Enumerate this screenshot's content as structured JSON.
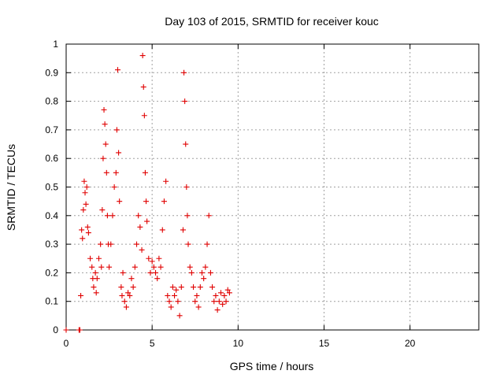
{
  "chart_data": {
    "type": "scatter",
    "title": "Day 103 of 2015, SRMTID for receiver kouc",
    "xlabel": "GPS time / hours",
    "ylabel": "SRMTID / TECUs",
    "xlim": [
      0,
      24
    ],
    "ylim": [
      0,
      1
    ],
    "xticks": [
      0,
      5,
      10,
      15,
      20
    ],
    "xtick_labels": [
      "0",
      "5",
      "10",
      "15",
      "20"
    ],
    "yticks": [
      0,
      0.1,
      0.2,
      0.3,
      0.4,
      0.5,
      0.6,
      0.7,
      0.8,
      0.9,
      1
    ],
    "ytick_labels": [
      "0",
      "0.1",
      "0.2",
      "0.3",
      "0.4",
      "0.5",
      "0.6",
      "0.7",
      "0.8",
      "0.9",
      "1"
    ],
    "grid": true,
    "marker": "+",
    "marker_color": "#e00000",
    "series": [
      {
        "name": "SRMTID",
        "points": [
          [
            0.0,
            0.0
          ],
          [
            0.75,
            0.0
          ],
          [
            0.8,
            0.0
          ],
          [
            0.85,
            0.12
          ],
          [
            0.9,
            0.35
          ],
          [
            0.95,
            0.32
          ],
          [
            1.0,
            0.42
          ],
          [
            1.05,
            0.52
          ],
          [
            1.1,
            0.48
          ],
          [
            1.15,
            0.44
          ],
          [
            1.2,
            0.5
          ],
          [
            1.25,
            0.36
          ],
          [
            1.3,
            0.34
          ],
          [
            1.4,
            0.25
          ],
          [
            1.5,
            0.22
          ],
          [
            1.55,
            0.18
          ],
          [
            1.6,
            0.15
          ],
          [
            1.7,
            0.2
          ],
          [
            1.75,
            0.13
          ],
          [
            1.8,
            0.18
          ],
          [
            1.9,
            0.25
          ],
          [
            2.0,
            0.3
          ],
          [
            2.05,
            0.22
          ],
          [
            2.1,
            0.42
          ],
          [
            2.15,
            0.6
          ],
          [
            2.2,
            0.77
          ],
          [
            2.25,
            0.72
          ],
          [
            2.3,
            0.65
          ],
          [
            2.35,
            0.55
          ],
          [
            2.4,
            0.4
          ],
          [
            2.45,
            0.3
          ],
          [
            2.5,
            0.22
          ],
          [
            2.6,
            0.3
          ],
          [
            2.7,
            0.4
          ],
          [
            2.8,
            0.5
          ],
          [
            2.9,
            0.55
          ],
          [
            2.95,
            0.7
          ],
          [
            3.0,
            0.91
          ],
          [
            3.05,
            0.62
          ],
          [
            3.1,
            0.45
          ],
          [
            3.2,
            0.15
          ],
          [
            3.25,
            0.12
          ],
          [
            3.3,
            0.2
          ],
          [
            3.4,
            0.1
          ],
          [
            3.5,
            0.08
          ],
          [
            3.6,
            0.13
          ],
          [
            3.7,
            0.12
          ],
          [
            3.8,
            0.18
          ],
          [
            3.9,
            0.15
          ],
          [
            4.0,
            0.22
          ],
          [
            4.1,
            0.3
          ],
          [
            4.2,
            0.4
          ],
          [
            4.3,
            0.36
          ],
          [
            4.4,
            0.28
          ],
          [
            4.45,
            0.96
          ],
          [
            4.5,
            0.85
          ],
          [
            4.55,
            0.75
          ],
          [
            4.6,
            0.55
          ],
          [
            4.65,
            0.45
          ],
          [
            4.7,
            0.38
          ],
          [
            4.8,
            0.25
          ],
          [
            4.9,
            0.2
          ],
          [
            5.0,
            0.24
          ],
          [
            5.1,
            0.22
          ],
          [
            5.2,
            0.2
          ],
          [
            5.3,
            0.18
          ],
          [
            5.4,
            0.25
          ],
          [
            5.5,
            0.22
          ],
          [
            5.6,
            0.35
          ],
          [
            5.7,
            0.45
          ],
          [
            5.8,
            0.52
          ],
          [
            5.9,
            0.12
          ],
          [
            6.0,
            0.1
          ],
          [
            6.1,
            0.08
          ],
          [
            6.2,
            0.15
          ],
          [
            6.3,
            0.12
          ],
          [
            6.4,
            0.14
          ],
          [
            6.5,
            0.1
          ],
          [
            6.6,
            0.05
          ],
          [
            6.7,
            0.15
          ],
          [
            6.8,
            0.35
          ],
          [
            6.85,
            0.9
          ],
          [
            6.9,
            0.8
          ],
          [
            6.95,
            0.65
          ],
          [
            7.0,
            0.5
          ],
          [
            7.05,
            0.4
          ],
          [
            7.1,
            0.3
          ],
          [
            7.2,
            0.22
          ],
          [
            7.3,
            0.2
          ],
          [
            7.4,
            0.15
          ],
          [
            7.5,
            0.1
          ],
          [
            7.6,
            0.12
          ],
          [
            7.7,
            0.08
          ],
          [
            7.8,
            0.15
          ],
          [
            7.9,
            0.2
          ],
          [
            8.0,
            0.18
          ],
          [
            8.1,
            0.22
          ],
          [
            8.2,
            0.3
          ],
          [
            8.3,
            0.4
          ],
          [
            8.4,
            0.2
          ],
          [
            8.5,
            0.15
          ],
          [
            8.6,
            0.1
          ],
          [
            8.7,
            0.12
          ],
          [
            8.8,
            0.07
          ],
          [
            8.9,
            0.1
          ],
          [
            9.0,
            0.13
          ],
          [
            9.1,
            0.09
          ],
          [
            9.2,
            0.12
          ],
          [
            9.3,
            0.1
          ],
          [
            9.4,
            0.14
          ],
          [
            9.5,
            0.13
          ]
        ]
      }
    ]
  }
}
